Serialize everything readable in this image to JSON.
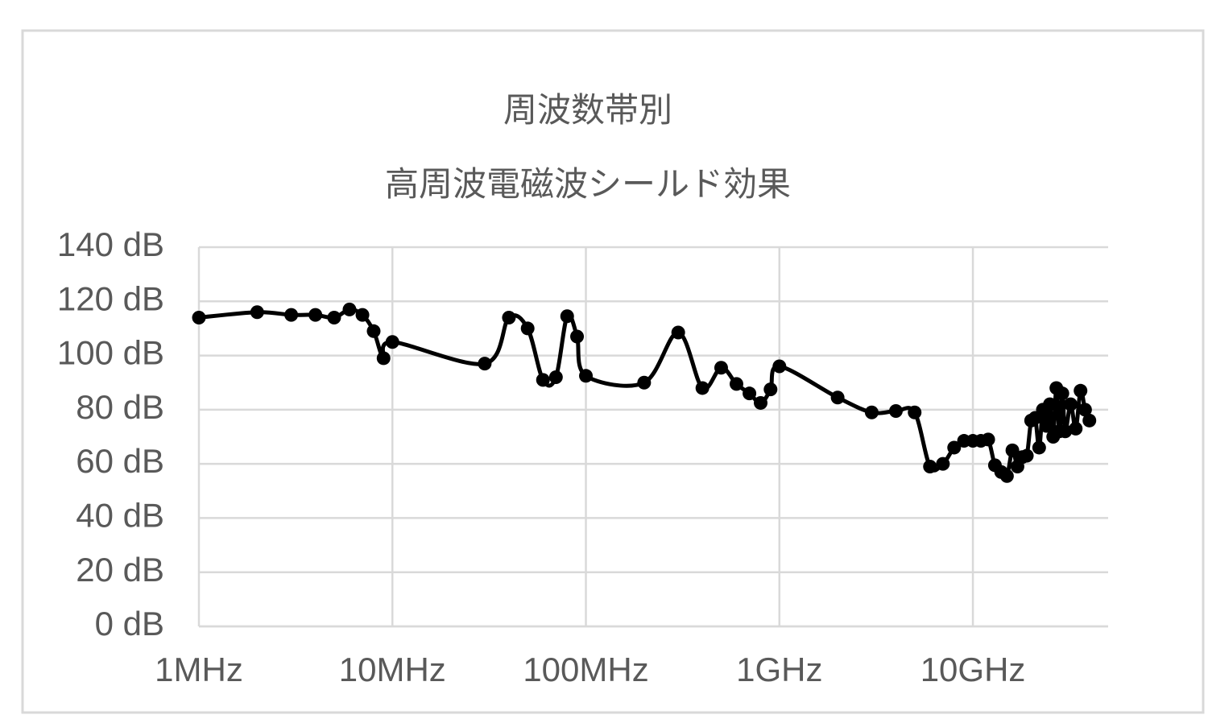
{
  "chart_data": {
    "type": "line",
    "title": "周波数帯別",
    "subtitle": "高周波電磁波シールド効果",
    "xscale": "log",
    "grid": true,
    "xlim": [
      1000000,
      50000000000
    ],
    "xticks": [
      {
        "value": 1000000,
        "label": "1MHz"
      },
      {
        "value": 10000000,
        "label": "10MHz"
      },
      {
        "value": 100000000,
        "label": "100MHz"
      },
      {
        "value": 1000000000,
        "label": "1GHz"
      },
      {
        "value": 10000000000,
        "label": "10GHz"
      }
    ],
    "ylim": [
      0,
      140
    ],
    "yticks": [
      {
        "value": 0,
        "label": "0 dB"
      },
      {
        "value": 20,
        "label": "20 dB"
      },
      {
        "value": 40,
        "label": "40 dB"
      },
      {
        "value": 60,
        "label": "60 dB"
      },
      {
        "value": 80,
        "label": "80 dB"
      },
      {
        "value": 100,
        "label": "100 dB"
      },
      {
        "value": 120,
        "label": "120 dB"
      },
      {
        "value": 140,
        "label": "140 dB"
      }
    ],
    "color": "#000000",
    "x": [
      1000000,
      2000000,
      3000000,
      4000000,
      5000000,
      6000000,
      7000000,
      8000000,
      9000000,
      10000000,
      30000000,
      40000000,
      50000000,
      60000000,
      70000000,
      80000000,
      90000000,
      100000000,
      200000000,
      300000000,
      400000000,
      500000000,
      600000000,
      700000000,
      800000000,
      900000000,
      1000000000,
      2000000000,
      3000000000,
      4000000000,
      5000000000,
      6000000000,
      7000000000,
      8000000000,
      9000000000,
      10000000000,
      11000000000,
      12000000000,
      13000000000,
      14000000000,
      15000000000,
      16000000000,
      17000000000,
      18000000000,
      19000000000,
      20000000000,
      21000000000,
      22000000000,
      23000000000,
      24000000000,
      25000000000,
      26000000000,
      27000000000,
      28000000000,
      29000000000,
      30000000000,
      32000000000,
      34000000000,
      36000000000,
      38000000000,
      40000000000
    ],
    "values": [
      114,
      116,
      115,
      115,
      114,
      117,
      115,
      109,
      99,
      105,
      97,
      114,
      110,
      91,
      92,
      114.5,
      107,
      92.5,
      90,
      108.5,
      88,
      95.5,
      89.5,
      86,
      82.5,
      87.5,
      96,
      84.5,
      79,
      79.5,
      79,
      59,
      60,
      66,
      68.5,
      68.5,
      68.5,
      69,
      59.5,
      57,
      55.5,
      65,
      59,
      62.5,
      63,
      76,
      77,
      66,
      80,
      74,
      82,
      70,
      88,
      72,
      86,
      72,
      82,
      73,
      87,
      80,
      76
    ]
  }
}
